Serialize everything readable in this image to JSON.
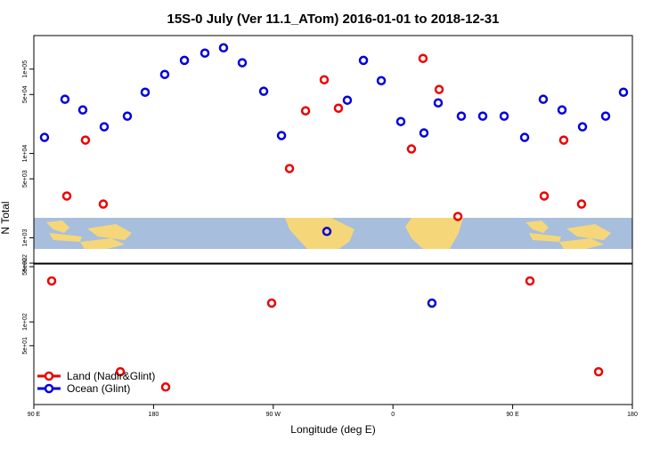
{
  "chart_data": {
    "type": "scatter",
    "title": "15S-0 July (Ver 11.1_ATom)   2016-01-01 to 2018-12-31",
    "x_label": "Longitude (deg E)",
    "y_label": "N Total",
    "log_y": true,
    "xlim": [
      90,
      540
    ],
    "xticks": [
      {
        "value": 90,
        "label": "90 E"
      },
      {
        "value": 180,
        "label": "180"
      },
      {
        "value": 270,
        "label": "90 W"
      },
      {
        "value": 360,
        "label": "0"
      },
      {
        "value": 450,
        "label": "90 E"
      },
      {
        "value": 540,
        "label": "180"
      }
    ],
    "legend_position": "bottom-left",
    "legend": [
      {
        "name": "Land (Nadir&Glint)",
        "color": "#ee0000"
      },
      {
        "name": "Ocean (Glint)",
        "color": "#0000dd"
      }
    ],
    "panels": [
      {
        "ylim": [
          500,
          250000
        ],
        "yticks": [
          {
            "value": 500,
            "label": "5e+02"
          },
          {
            "value": 1000,
            "label": "1e+03"
          },
          {
            "value": 5000,
            "label": "5e+03"
          },
          {
            "value": 10000,
            "label": "1e+04"
          },
          {
            "value": 50000,
            "label": "5e+04"
          },
          {
            "value": 100000,
            "label": "1e+05"
          }
        ],
        "series": [
          {
            "x": [
              114.8,
              128.8,
              142.2,
              282.2,
              294.3,
              308.3,
              319.0,
              373.9,
              382.6,
              394.7,
              408.8,
              473.7,
              488.4,
              501.8
            ],
            "values": [
              3130,
              14400,
              2510,
              6620,
              32000,
              74800,
              34400,
              11300,
              134000,
              57300,
              1790,
              3130,
              14400,
              2510
            ]
          },
          {
            "x": [
              98.0,
              113.4,
              126.8,
              142.9,
              160.3,
              173.7,
              188.4,
              203.2,
              218.6,
              232.6,
              246.7,
              262.8,
              276.2,
              310.3,
              325.7,
              337.8,
              351.2,
              365.9,
              383.3,
              394.0,
              411.4,
              427.5,
              443.6,
              459.0,
              473.0,
              487.1,
              502.5,
              519.9,
              533.3
            ],
            "values": [
              15500,
              43900,
              32800,
              20700,
              27700,
              53200,
              86500,
              127000,
              155000,
              179000,
              119000,
              54600,
              16300,
              1190,
              42800,
              127000,
              72900,
              23900,
              17500,
              39800,
              27700,
              27700,
              27700,
              15500,
              43900,
              32800,
              20700,
              27700,
              53200
            ]
          }
        ]
      },
      {
        "ylim": [
          9,
          540
        ],
        "yticks": [
          {
            "value": 50,
            "label": "5e+01"
          },
          {
            "value": 100,
            "label": "1e+02"
          },
          {
            "value": 500,
            "label": "5e+02"
          }
        ],
        "series": [
          {
            "x": [
              103.4,
              155.0,
              189.1,
              268.8,
              463.0,
              514.6
            ],
            "values": [
              330,
              23.4,
              15,
              173,
              330,
              23.4
            ]
          },
          {
            "x": [
              389.3
            ],
            "values": [
              173
            ]
          }
        ]
      }
    ]
  }
}
